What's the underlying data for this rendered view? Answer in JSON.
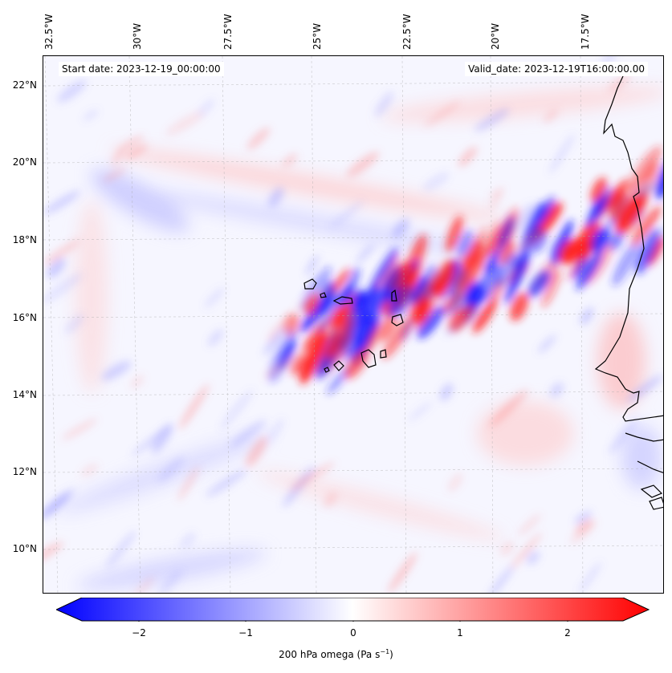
{
  "map": {
    "start_date": "Start date: 2023-12-19_00:00:00",
    "valid_date": "Valid_date: 2023-12-19T16:00:00.00",
    "lon_labels": [
      "32.5°W",
      "30°W",
      "27.5°W",
      "25°W",
      "22.5°W",
      "20°W",
      "17.5°W"
    ],
    "lat_labels": [
      "22°N",
      "20°N",
      "18°N",
      "16°N",
      "14°N",
      "12°N",
      "10°N"
    ],
    "variable": "200 hPa omega",
    "units_base": "(Pa s",
    "units_exp": "−1",
    "units_close": ")",
    "colormap": [
      "#0000ff",
      "#ffffff",
      "#ff0000"
    ]
  },
  "colorbar": {
    "ticks": [
      "−2",
      "−1",
      "0",
      "1",
      "2"
    ],
    "range": [
      -2.7,
      2.7
    ]
  }
}
